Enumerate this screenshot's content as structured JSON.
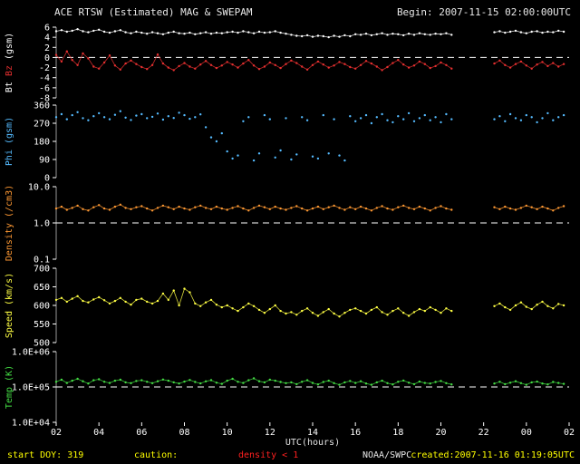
{
  "header": {
    "title": "ACE RTSW (Estimated) MAG & SWEPAM",
    "begin": "Begin: 2007-11-15 02:00:00UTC"
  },
  "footer": {
    "start_doy": "start DOY: 319",
    "caution_label": "caution:",
    "caution_value": "density < 1",
    "agency": "NOAA/SWPC",
    "created": "created:2007-11-16 01:19:05UTC"
  },
  "colors": {
    "background": "#000000",
    "axis_text": "#ffffff",
    "bt": "#ffffff",
    "bz": "#e83030",
    "phi": "#55bbff",
    "density": "#ff9933",
    "speed": "#ffff44",
    "temp": "#44dd44",
    "footer_yellow": "#ffff00",
    "footer_red": "#ff2020"
  },
  "chart_data": {
    "type": "scatter",
    "xlabel": "UTC(hours)",
    "x_range_hours": [
      2,
      26
    ],
    "x_ticks": [
      [
        2,
        "02"
      ],
      [
        4,
        "04"
      ],
      [
        6,
        "06"
      ],
      [
        8,
        "08"
      ],
      [
        10,
        "10"
      ],
      [
        12,
        "12"
      ],
      [
        14,
        "14"
      ],
      [
        16,
        "16"
      ],
      [
        18,
        "18"
      ],
      [
        20,
        "20"
      ],
      [
        22,
        "22"
      ],
      [
        24,
        "00"
      ],
      [
        26,
        "02"
      ]
    ],
    "x": [
      2,
      2.25,
      2.5,
      2.75,
      3,
      3.25,
      3.5,
      3.75,
      4,
      4.25,
      4.5,
      4.75,
      5,
      5.25,
      5.5,
      5.75,
      6,
      6.25,
      6.5,
      6.75,
      7,
      7.25,
      7.5,
      7.75,
      8,
      8.25,
      8.5,
      8.75,
      9,
      9.25,
      9.5,
      9.75,
      10,
      10.25,
      10.5,
      10.75,
      11,
      11.25,
      11.5,
      11.75,
      12,
      12.25,
      12.5,
      12.75,
      13,
      13.25,
      13.5,
      13.75,
      14,
      14.25,
      14.5,
      14.75,
      15,
      15.25,
      15.5,
      15.75,
      16,
      16.25,
      16.5,
      16.75,
      17,
      17.25,
      17.5,
      17.75,
      18,
      18.25,
      18.5,
      18.75,
      19,
      19.25,
      19.5,
      19.75,
      20,
      20.25,
      20.5,
      20.75,
      21,
      21.25,
      21.5,
      21.75,
      22,
      22.25,
      22.5,
      22.75,
      23,
      23.25,
      23.5,
      23.75,
      24,
      24.25,
      24.5,
      24.75,
      25,
      25.25,
      25.5,
      25.75
    ],
    "panels": [
      {
        "id": "mag",
        "ylabel_parts": [
          {
            "text": "Bt",
            "color": "#ffffff"
          },
          {
            "text": "Bz",
            "color": "#e83030"
          },
          {
            "text": "(gsm)",
            "color": "#ffffff"
          }
        ],
        "ylim": [
          -8,
          6
        ],
        "log": false,
        "yticks": [
          [
            -8,
            "-8"
          ],
          [
            -6,
            "-6"
          ],
          [
            -4,
            "-4"
          ],
          [
            -2,
            "-2"
          ],
          [
            0,
            "0"
          ],
          [
            2,
            "2"
          ],
          [
            4,
            "4"
          ],
          [
            6,
            "6"
          ]
        ],
        "refline": 0,
        "series": [
          {
            "name": "Bt",
            "color": "#ffffff",
            "draw": "line+dots",
            "values": [
              5.2,
              5.4,
              5.1,
              5.3,
              5.6,
              5.2,
              5.0,
              5.3,
              5.5,
              5.1,
              4.9,
              5.2,
              5.4,
              5.0,
              4.8,
              5.1,
              4.9,
              4.7,
              5.0,
              4.8,
              4.6,
              4.9,
              5.1,
              4.8,
              4.7,
              4.9,
              4.6,
              4.8,
              5.0,
              4.7,
              4.9,
              4.8,
              5.0,
              5.1,
              4.9,
              5.2,
              5.0,
              4.8,
              5.1,
              4.9,
              5.0,
              5.2,
              4.9,
              4.7,
              4.5,
              4.3,
              4.2,
              4.4,
              4.1,
              4.3,
              4.2,
              4.0,
              4.3,
              4.1,
              4.4,
              4.2,
              4.6,
              4.5,
              4.7,
              4.4,
              4.6,
              4.8,
              4.5,
              4.7,
              4.6,
              4.4,
              4.7,
              4.5,
              4.8,
              4.6,
              4.5,
              4.7,
              4.6,
              4.8,
              4.5,
              null,
              null,
              null,
              null,
              null,
              null,
              null,
              5.0,
              5.2,
              4.9,
              5.1,
              5.3,
              5.0,
              4.8,
              5.1,
              5.2,
              4.9,
              5.1,
              5.0,
              5.3,
              5.1
            ]
          },
          {
            "name": "Bz",
            "color": "#e83030",
            "draw": "line+dots",
            "values": [
              0.5,
              -0.8,
              1.2,
              -0.5,
              -1.5,
              0.8,
              -0.2,
              -1.8,
              -2.2,
              -1.0,
              0.4,
              -1.6,
              -2.4,
              -1.2,
              -0.6,
              -1.3,
              -1.9,
              -2.3,
              -1.5,
              0.6,
              -1.2,
              -2.0,
              -2.5,
              -1.7,
              -1.1,
              -1.8,
              -2.2,
              -1.4,
              -0.7,
              -1.5,
              -2.1,
              -1.6,
              -0.9,
              -1.4,
              -2.0,
              -1.2,
              -0.5,
              -1.6,
              -2.3,
              -1.8,
              -1.0,
              -1.5,
              -2.1,
              -1.3,
              -0.6,
              -1.1,
              -1.8,
              -2.4,
              -1.5,
              -0.8,
              -1.4,
              -2.0,
              -1.6,
              -0.9,
              -1.3,
              -1.9,
              -2.2,
              -1.5,
              -0.7,
              -1.2,
              -1.8,
              -2.5,
              -1.9,
              -1.1,
              -0.5,
              -1.4,
              -2.0,
              -1.6,
              -0.8,
              -1.3,
              -2.1,
              -1.7,
              -1.0,
              -1.5,
              -2.2,
              null,
              null,
              null,
              null,
              null,
              null,
              null,
              -1.2,
              -0.6,
              -1.5,
              -2.0,
              -1.3,
              -0.8,
              -1.6,
              -2.2,
              -1.4,
              -0.9,
              -1.7,
              -1.1,
              -1.8,
              -1.3
            ]
          }
        ]
      },
      {
        "id": "phi",
        "ylabel_parts": [
          {
            "text": "Phi (gsm)",
            "color": "#55bbff"
          }
        ],
        "ylim": [
          0,
          360
        ],
        "log": false,
        "yticks": [
          [
            0,
            "0"
          ],
          [
            90,
            "90"
          ],
          [
            180,
            "180"
          ],
          [
            270,
            "270"
          ],
          [
            360,
            "360"
          ]
        ],
        "refline": null,
        "series": [
          {
            "name": "Phi",
            "color": "#55bbff",
            "draw": "dots",
            "values": [
              300,
              315,
              290,
              310,
              325,
              295,
              285,
              305,
              320,
              300,
              290,
              312,
              330,
              298,
              286,
              308,
              315,
              295,
              302,
              318,
              288,
              305,
              296,
              322,
              310,
              292,
              300,
              314,
              250,
              200,
              180,
              220,
              130,
              95,
              110,
              280,
              300,
              85,
              120,
              310,
              290,
              100,
              135,
              295,
              90,
              115,
              300,
              285,
              105,
              95,
              310,
              120,
              290,
              110,
              85,
              305,
              280,
              295,
              310,
              270,
              300,
              315,
              285,
              275,
              305,
              290,
              320,
              280,
              295,
              310,
              285,
              300,
              275,
              315,
              290,
              null,
              null,
              null,
              null,
              null,
              null,
              null,
              290,
              305,
              280,
              315,
              295,
              285,
              310,
              300,
              275,
              295,
              320,
              285,
              300,
              310
            ]
          }
        ]
      },
      {
        "id": "density",
        "ylabel_parts": [
          {
            "text": "Density (/cm3)",
            "color": "#ff9933"
          }
        ],
        "ylim": [
          0.1,
          10
        ],
        "log": true,
        "yticks": [
          [
            0.1,
            "0.1"
          ],
          [
            1.0,
            "1.0"
          ],
          [
            10,
            "10.0"
          ]
        ],
        "refline": 1.0,
        "series": [
          {
            "name": "Density",
            "color": "#ff9933",
            "draw": "line+dots",
            "values": [
              2.5,
              2.8,
              2.3,
              2.6,
              3.0,
              2.4,
              2.2,
              2.7,
              3.1,
              2.5,
              2.3,
              2.8,
              3.2,
              2.6,
              2.4,
              2.7,
              2.9,
              2.5,
              2.2,
              2.6,
              3.0,
              2.7,
              2.4,
              2.8,
              2.5,
              2.3,
              2.7,
              3.0,
              2.6,
              2.4,
              2.8,
              2.5,
              2.3,
              2.6,
              2.9,
              2.5,
              2.2,
              2.6,
              3.0,
              2.7,
              2.4,
              2.8,
              2.5,
              2.3,
              2.6,
              2.9,
              2.5,
              2.2,
              2.5,
              2.8,
              2.4,
              2.7,
              3.0,
              2.6,
              2.3,
              2.7,
              2.4,
              2.8,
              2.5,
              2.2,
              2.6,
              2.9,
              2.5,
              2.3,
              2.7,
              3.0,
              2.6,
              2.4,
              2.8,
              2.5,
              2.2,
              2.6,
              2.9,
              2.5,
              2.3,
              null,
              null,
              null,
              null,
              null,
              null,
              null,
              2.7,
              2.4,
              2.8,
              2.5,
              2.3,
              2.6,
              3.0,
              2.7,
              2.4,
              2.8,
              2.5,
              2.2,
              2.6,
              2.9
            ]
          }
        ]
      },
      {
        "id": "speed",
        "ylabel_parts": [
          {
            "text": "Speed (km/s)",
            "color": "#ffff44"
          }
        ],
        "ylim": [
          500,
          700
        ],
        "log": false,
        "yticks": [
          [
            500,
            "500"
          ],
          [
            550,
            "550"
          ],
          [
            600,
            "600"
          ],
          [
            650,
            "650"
          ],
          [
            700,
            "700"
          ]
        ],
        "refline": null,
        "series": [
          {
            "name": "Speed",
            "color": "#ffff44",
            "draw": "line+dots",
            "values": [
              615,
              620,
              610,
              618,
              625,
              612,
              608,
              616,
              622,
              614,
              605,
              612,
              620,
              610,
              602,
              615,
              618,
              610,
              605,
              612,
              632,
              615,
              640,
              600,
              645,
              635,
              605,
              598,
              608,
              615,
              602,
              595,
              600,
              592,
              585,
              595,
              605,
              598,
              588,
              580,
              590,
              600,
              585,
              578,
              582,
              575,
              585,
              592,
              580,
              572,
              582,
              590,
              578,
              570,
              580,
              588,
              592,
              585,
              578,
              588,
              595,
              582,
              575,
              585,
              592,
              580,
              572,
              582,
              590,
              585,
              595,
              588,
              580,
              592,
              585,
              null,
              null,
              null,
              null,
              null,
              null,
              null,
              598,
              605,
              595,
              588,
              600,
              608,
              596,
              590,
              602,
              610,
              598,
              592,
              604,
              600
            ]
          }
        ]
      },
      {
        "id": "temp",
        "ylabel_parts": [
          {
            "text": "Temp (K)",
            "color": "#44dd44"
          }
        ],
        "ylim": [
          10000,
          1000000
        ],
        "log": true,
        "yticks": [
          [
            10000,
            "1.0E+04"
          ],
          [
            100000,
            "1.0E+05"
          ],
          [
            1000000,
            "1.0E+06"
          ]
        ],
        "refline": 100000,
        "series": [
          {
            "name": "Temp",
            "color": "#44dd44",
            "draw": "line+dots",
            "values": [
              140000,
              160000,
              130000,
              150000,
              170000,
              145000,
              125000,
              155000,
              165000,
              140000,
              130000,
              150000,
              160000,
              135000,
              128000,
              148000,
              155000,
              140000,
              128000,
              145000,
              162000,
              150000,
              135000,
              125000,
              142000,
              158000,
              138000,
              126000,
              144000,
              156000,
              132000,
              122000,
              150000,
              170000,
              140000,
              130000,
              155000,
              175000,
              145000,
              135000,
              160000,
              150000,
              138000,
              128000,
              135000,
              120000,
              140000,
              155000,
              130000,
              118000,
              138000,
              150000,
              128000,
              115000,
              135000,
              148000,
              130000,
              145000,
              125000,
              115000,
              135000,
              150000,
              128000,
              118000,
              140000,
              152000,
              132000,
              120000,
              142000,
              130000,
              125000,
              138000,
              148000,
              128000,
              118000,
              null,
              null,
              null,
              null,
              null,
              null,
              null,
              125000,
              140000,
              120000,
              132000,
              145000,
              128000,
              115000,
              135000,
              142000,
              125000,
              118000,
              138000,
              130000,
              122000
            ]
          }
        ]
      }
    ]
  }
}
